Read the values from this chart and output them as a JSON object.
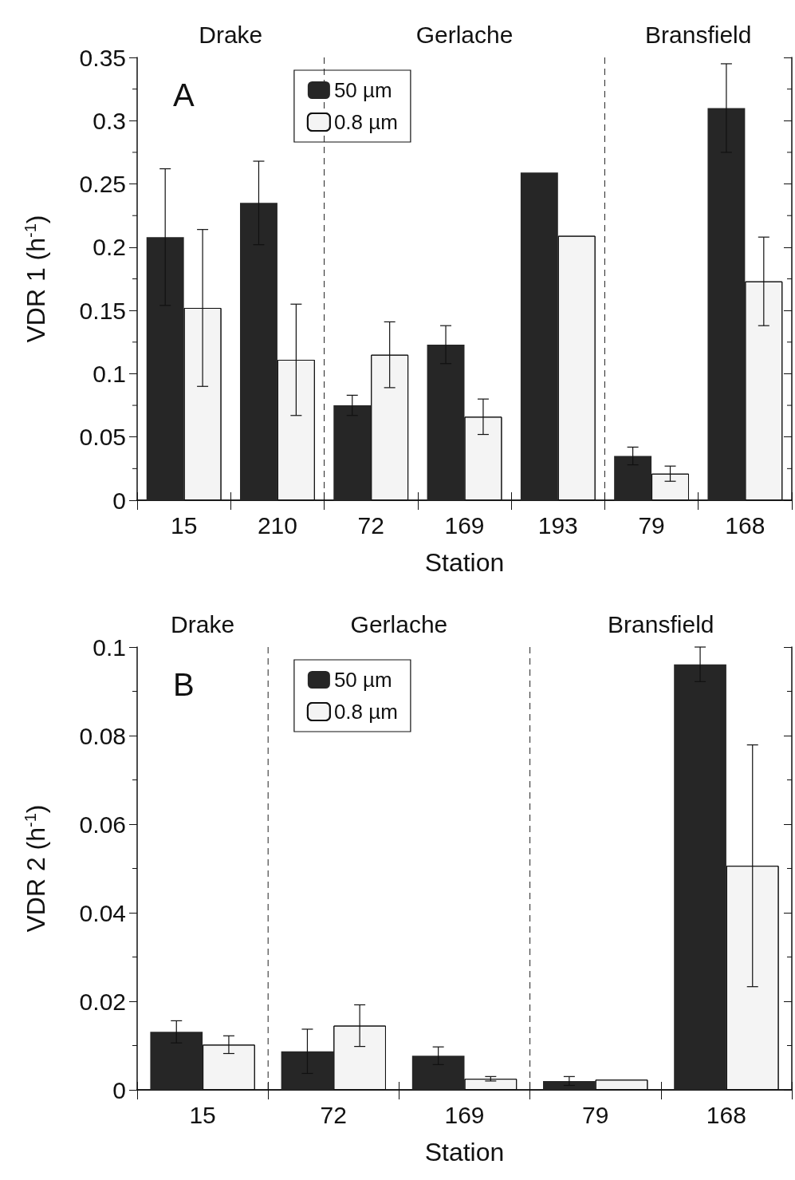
{
  "chart_data": [
    {
      "type": "bar",
      "title": "A",
      "xlabel": "Station",
      "ylabel": "VDR 1 (h$^{-1}$)",
      "categories": [
        "15",
        "210",
        "72",
        "169",
        "193",
        "79",
        "168"
      ],
      "series": [
        {
          "name": "50 µm",
          "color": "#262626",
          "values": [
            0.208,
            0.235,
            0.075,
            0.123,
            0.259,
            0.035,
            0.31
          ],
          "errors": [
            0.054,
            0.033,
            0.008,
            0.015,
            null,
            0.007,
            0.035
          ]
        },
        {
          "name": "0.8 µm",
          "color": "#f4f4f4",
          "values": [
            0.152,
            0.111,
            0.115,
            0.066,
            0.209,
            0.021,
            0.173
          ],
          "errors": [
            0.062,
            0.044,
            0.026,
            0.014,
            null,
            0.006,
            0.035
          ]
        }
      ],
      "ylim": [
        0,
        0.35
      ],
      "yticks": [
        0,
        0.05,
        0.1,
        0.15,
        0.2,
        0.25,
        0.3,
        0.35
      ],
      "annotations": [
        "Drake",
        "Gerlache",
        "Bransfield"
      ],
      "legend": "top",
      "grid": false
    },
    {
      "type": "bar",
      "title": "B",
      "xlabel": "Station",
      "ylabel": "VDR 2 (h$^{-1}$)",
      "categories": [
        "15",
        "72",
        "169",
        "79",
        "168"
      ],
      "series": [
        {
          "name": "50 µm",
          "color": "#262626",
          "values": [
            0.0131,
            0.0087,
            0.0077,
            0.002,
            0.0961
          ],
          "errors": [
            0.0025,
            0.005,
            0.002,
            0.001,
            0.0039
          ]
        },
        {
          "name": "0.8 µm",
          "color": "#f4f4f4",
          "values": [
            0.0102,
            0.0145,
            0.0025,
            0.0023,
            0.0506
          ],
          "errors": [
            0.002,
            0.0047,
            0.0005,
            null,
            0.0273
          ]
        }
      ],
      "ylim": [
        0,
        0.1
      ],
      "yticks": [
        0,
        0.02,
        0.04,
        0.06,
        0.08,
        0.1
      ],
      "annotations": [
        "Drake",
        "Gerlache",
        "Bransfield"
      ],
      "legend": "top",
      "grid": false
    }
  ]
}
